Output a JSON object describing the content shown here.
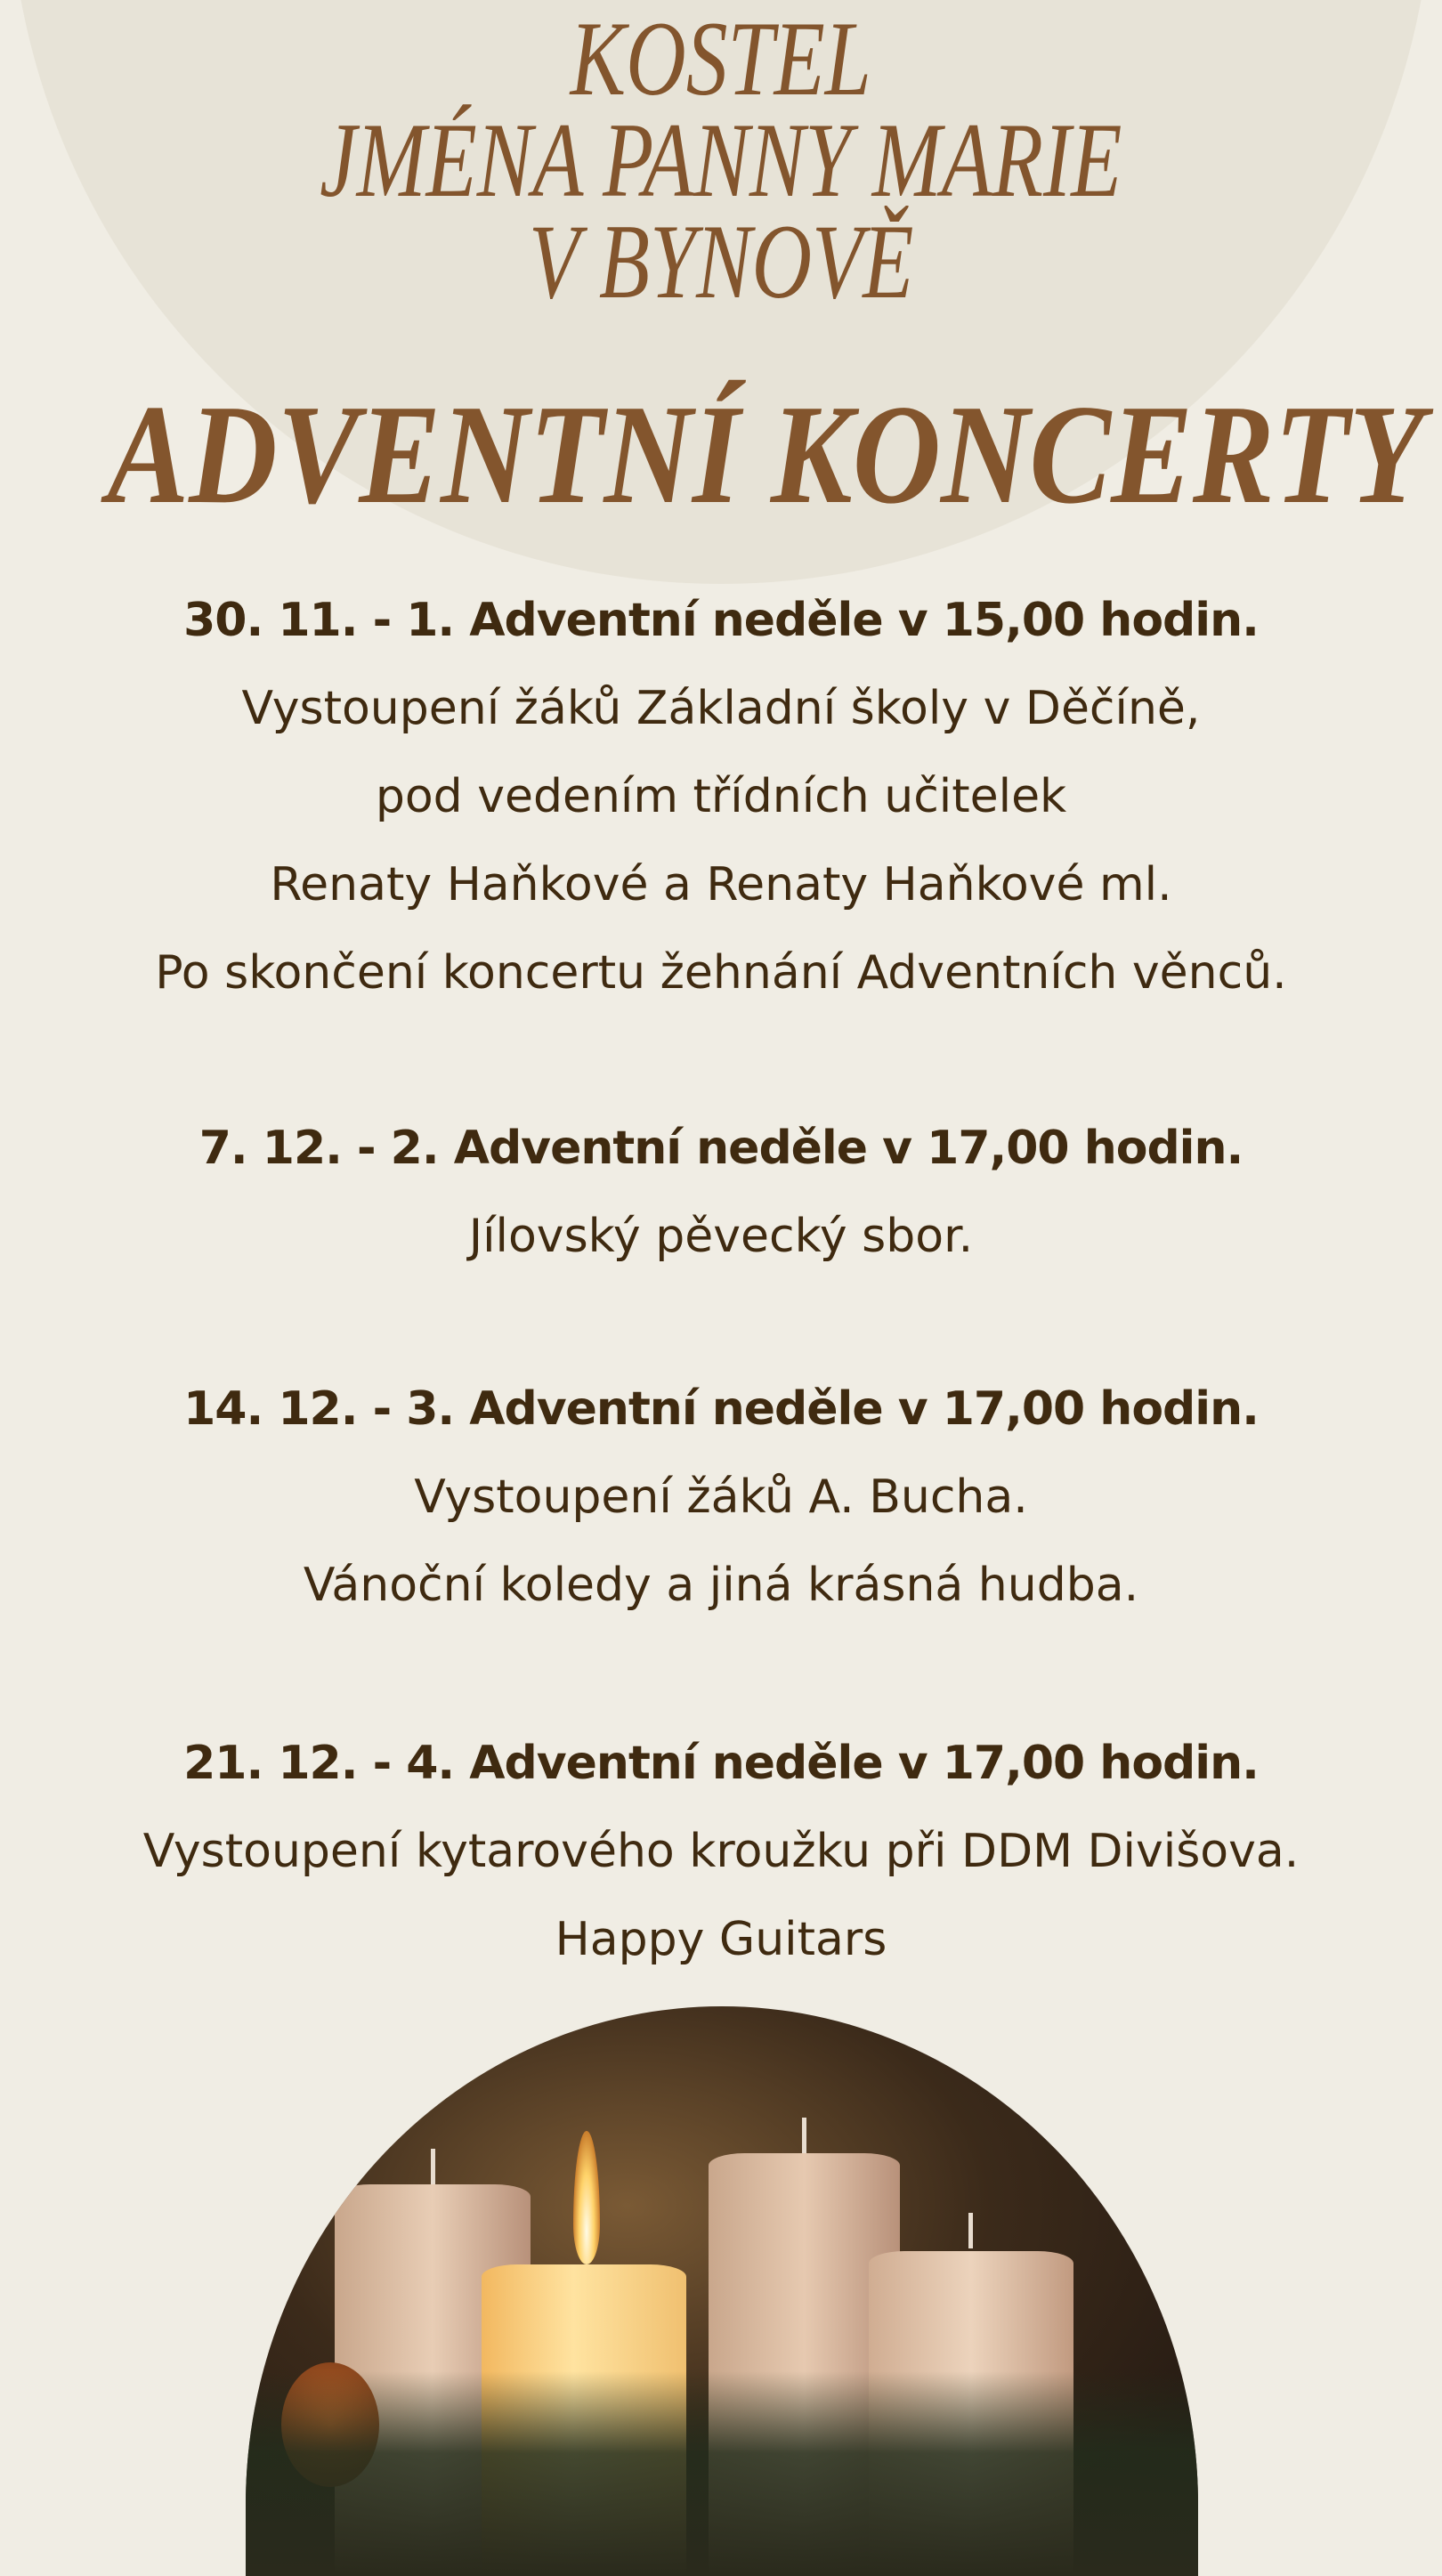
{
  "header": {
    "church_lines": [
      "KOSTEL",
      "JMÉNA PANNY MARIE",
      "V BYNOVĚ"
    ],
    "title": "ADVENTNÍ KONCERTY"
  },
  "events": [
    {
      "heading": "30. 11. - 1. Adventní neděle v 15,00 hodin.",
      "lines": [
        "Vystoupení žáků Základní školy v Děčíně,",
        "pod vedením třídních učitelek",
        "Renaty Haňkové a Renaty Haňkové ml.",
        "Po skončení koncertu žehnání Adventních věnců."
      ]
    },
    {
      "heading": "7. 12. - 2. Adventní neděle v 17,00 hodin.",
      "lines": [
        "Jílovský pěvecký sbor."
      ]
    },
    {
      "heading": "14. 12. - 3. Adventní neděle v 17,00 hodin.",
      "lines": [
        "Vystoupení žáků A. Bucha.",
        "Vánoční koledy a jiná krásná hudba."
      ]
    },
    {
      "heading": "21. 12. - 4. Adventní neděle v 17,00 hodin.",
      "lines": [
        "Vystoupení kytarového kroužku při DDM Divišova.",
        "Happy Guitars"
      ]
    }
  ],
  "image": {
    "subject": "advent-candles",
    "lit_candles": 1,
    "total_candles": 4
  },
  "colors": {
    "background": "#f0ede4",
    "circle": "#e7e3d7",
    "title": "#83552d",
    "text": "#3f2a10"
  }
}
